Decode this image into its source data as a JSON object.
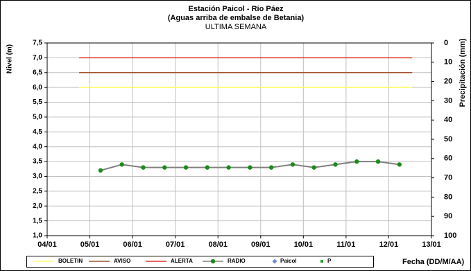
{
  "chart_data": {
    "type": "line",
    "title": "Estación Paicol - Río Páez",
    "subtitle": "(Aguas arriba de embalse de Betania)",
    "subtitle2": "ULTIMA SEMANA",
    "y_label": "Nivel (m)",
    "y2_label": "Precipitación (mm)",
    "x_label": "Fecha (DD/M/AA)",
    "xlim": [
      4,
      13
    ],
    "xticks": [
      {
        "value": 4,
        "label": "04/01"
      },
      {
        "value": 5,
        "label": "05/01"
      },
      {
        "value": 6,
        "label": "06/01"
      },
      {
        "value": 7,
        "label": "07/01"
      },
      {
        "value": 8,
        "label": "08/01"
      },
      {
        "value": 9,
        "label": "09/01"
      },
      {
        "value": 10,
        "label": "10/01"
      },
      {
        "value": 11,
        "label": "11/01"
      },
      {
        "value": 12,
        "label": "12/01"
      },
      {
        "value": 13,
        "label": "13/01"
      }
    ],
    "ylim": [
      1,
      7.5
    ],
    "yticks": [
      {
        "value": 1,
        "label": "1,0"
      },
      {
        "value": 1.5,
        "label": "1,5"
      },
      {
        "value": 2,
        "label": "2,0"
      },
      {
        "value": 2.5,
        "label": "2,5"
      },
      {
        "value": 3,
        "label": "3,0"
      },
      {
        "value": 3.5,
        "label": "3,5"
      },
      {
        "value": 4,
        "label": "4,0"
      },
      {
        "value": 4.5,
        "label": "4,5"
      },
      {
        "value": 5,
        "label": "5,0"
      },
      {
        "value": 5.5,
        "label": "5,5"
      },
      {
        "value": 6,
        "label": "6,0"
      },
      {
        "value": 6.5,
        "label": "6,5"
      },
      {
        "value": 7,
        "label": "7,0"
      },
      {
        "value": 7.5,
        "label": "7,5"
      }
    ],
    "y2lim": [
      0,
      100
    ],
    "y2_inverted": true,
    "y2ticks": [
      0,
      10,
      20,
      30,
      40,
      50,
      60,
      70,
      80,
      90,
      100
    ],
    "grid": true,
    "series": [
      {
        "name": "BOLETIN",
        "color": "#ffff66",
        "marker": "none",
        "x": [
          4.75,
          12.55
        ],
        "values": [
          6,
          6
        ]
      },
      {
        "name": "AVISO",
        "color": "#a0522d",
        "marker": "none",
        "x": [
          4.75,
          12.55
        ],
        "values": [
          6.5,
          6.5
        ]
      },
      {
        "name": "ALERTA",
        "color": "#e03030",
        "marker": "none",
        "x": [
          4.75,
          12.55
        ],
        "values": [
          7,
          7
        ]
      },
      {
        "name": "RADIO",
        "color": "#808080",
        "marker_color": "#1a8c1a",
        "marker": "circle",
        "x": [
          5.25,
          5.75,
          6.25,
          6.75,
          7.25,
          7.75,
          8.25,
          8.75,
          9.25,
          9.75,
          10.25,
          10.75,
          11.25,
          11.75,
          12.25
        ],
        "values": [
          3.2,
          3.4,
          3.3,
          3.3,
          3.3,
          3.3,
          3.3,
          3.3,
          3.3,
          3.4,
          3.3,
          3.4,
          3.5,
          3.5,
          3.4
        ]
      },
      {
        "name": "Paicol",
        "color": "#6b8fd0",
        "marker": "diamond",
        "x": [],
        "values": []
      },
      {
        "name": "P",
        "color": "#22aa22",
        "marker": "square",
        "x": [],
        "values": []
      }
    ]
  }
}
